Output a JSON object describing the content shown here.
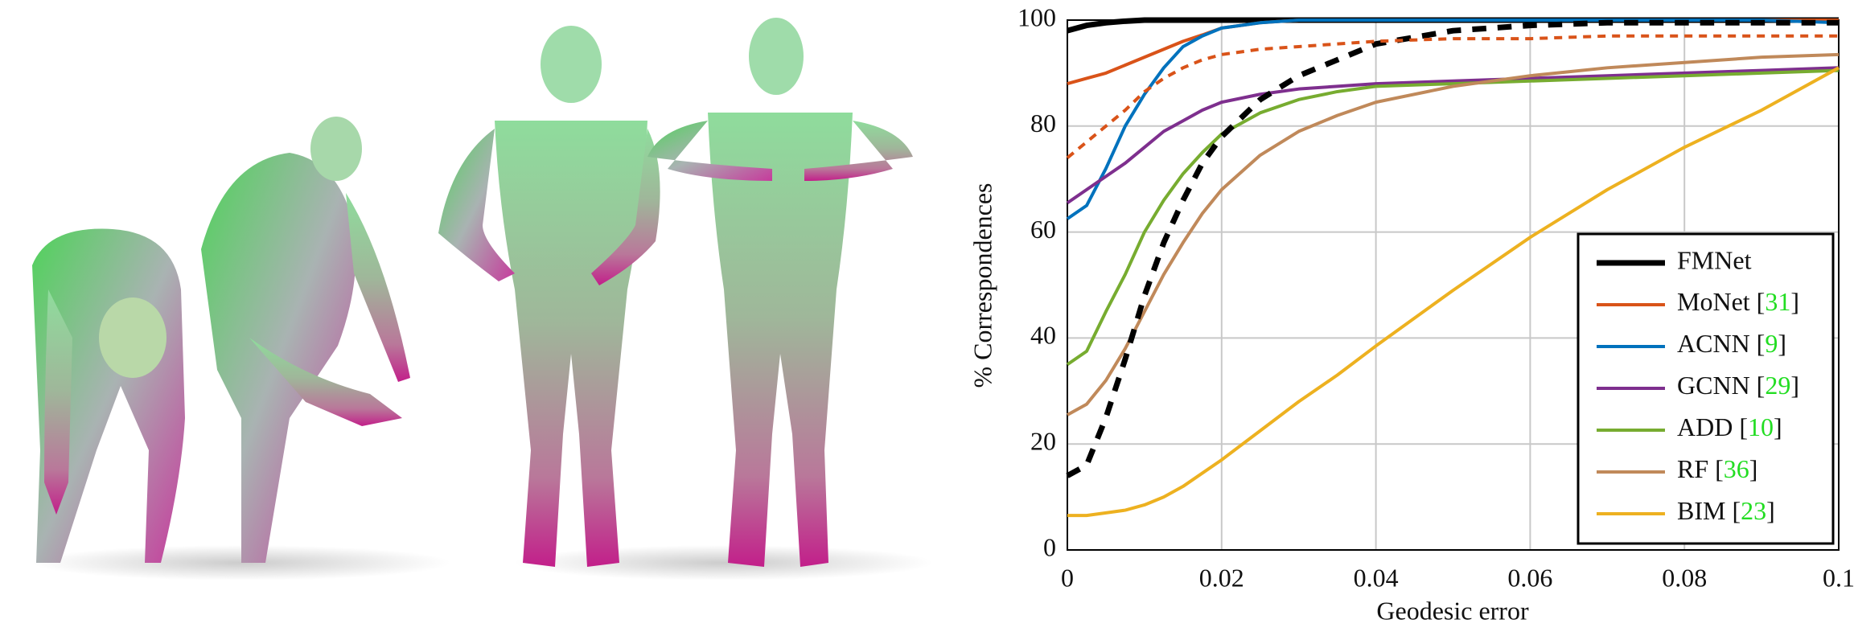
{
  "chart_data": {
    "type": "line",
    "x_label": "Geodesic error",
    "y_label": "% Correspondences",
    "x": [
      0,
      0.0025,
      0.005,
      0.0075,
      0.01,
      0.0125,
      0.015,
      0.0175,
      0.02,
      0.025,
      0.03,
      0.035,
      0.04,
      0.05,
      0.06,
      0.07,
      0.08,
      0.09,
      0.1
    ],
    "series": [
      {
        "name": "FMNet",
        "color": "#000000",
        "width": 7,
        "values": [
          98,
          99,
          99.5,
          99.8,
          100,
          100,
          100,
          100,
          100,
          100,
          100,
          100,
          100,
          100,
          100,
          100,
          100,
          100,
          100
        ]
      },
      {
        "name": "MoNet [31]",
        "color": "#d95319",
        "width": 4,
        "values": [
          88,
          89,
          90,
          91.5,
          93,
          94.5,
          96,
          97.2,
          98.5,
          99.5,
          100,
          100,
          100,
          100,
          100,
          100,
          100,
          100,
          100
        ]
      },
      {
        "name": "ACNN [9]",
        "color": "#0072bd",
        "width": 4,
        "values": [
          62.5,
          65,
          72,
          80,
          86,
          91,
          95,
          97,
          98.5,
          99.5,
          100,
          100,
          100,
          100,
          100,
          100,
          100,
          100,
          99.5
        ]
      },
      {
        "name": "GCNN [29]",
        "color": "#7e2f8e",
        "width": 4,
        "values": [
          65.5,
          68,
          70.5,
          73,
          76,
          79,
          81,
          83,
          84.5,
          86,
          87,
          87.5,
          88,
          88.5,
          89,
          89.5,
          90,
          90.5,
          91
        ]
      },
      {
        "name": "ADD [10]",
        "color": "#77ac30",
        "width": 4,
        "values": [
          35,
          37.5,
          45,
          52,
          60,
          66,
          71,
          75,
          78.5,
          82.5,
          85,
          86.5,
          87.5,
          88,
          88.5,
          89,
          89.5,
          90,
          90.5
        ]
      },
      {
        "name": "RF [36]",
        "color": "#c0895a",
        "width": 4,
        "values": [
          25.5,
          27.5,
          32,
          38,
          45,
          52,
          58,
          63.5,
          68,
          74.5,
          79,
          82,
          84.5,
          87.5,
          89.5,
          91,
          92,
          93,
          93.5
        ]
      },
      {
        "name": "BIM [23]",
        "color": "#edb120",
        "width": 4,
        "values": [
          6.5,
          6.5,
          7,
          7.5,
          8.5,
          10,
          12,
          14.5,
          17,
          22.5,
          28,
          33,
          38.5,
          49,
          59,
          68,
          76,
          83,
          91
        ]
      },
      {
        "color": "#000000",
        "width": 7,
        "dashed": true,
        "values": [
          14,
          16,
          25,
          36,
          48,
          58,
          66,
          73,
          78,
          85,
          89.5,
          92.5,
          95.5,
          98,
          99,
          99.5,
          99.5,
          99.5,
          99.5
        ]
      },
      {
        "color": "#d95319",
        "width": 4,
        "dashed": true,
        "values": [
          74,
          77,
          80,
          83,
          86.5,
          89,
          91,
          92.5,
          93.5,
          94.5,
          95,
          95.5,
          96,
          96.5,
          96.5,
          97,
          97,
          97,
          97
        ]
      }
    ],
    "xlim": [
      0,
      0.1
    ],
    "ylim": [
      0,
      100
    ],
    "xticks": [
      0,
      0.02,
      0.04,
      0.06,
      0.08,
      0.1
    ],
    "yticks": [
      0,
      20,
      40,
      60,
      80,
      100
    ],
    "grid": true,
    "legend": "lower right",
    "reference_color": "#22dd22"
  }
}
